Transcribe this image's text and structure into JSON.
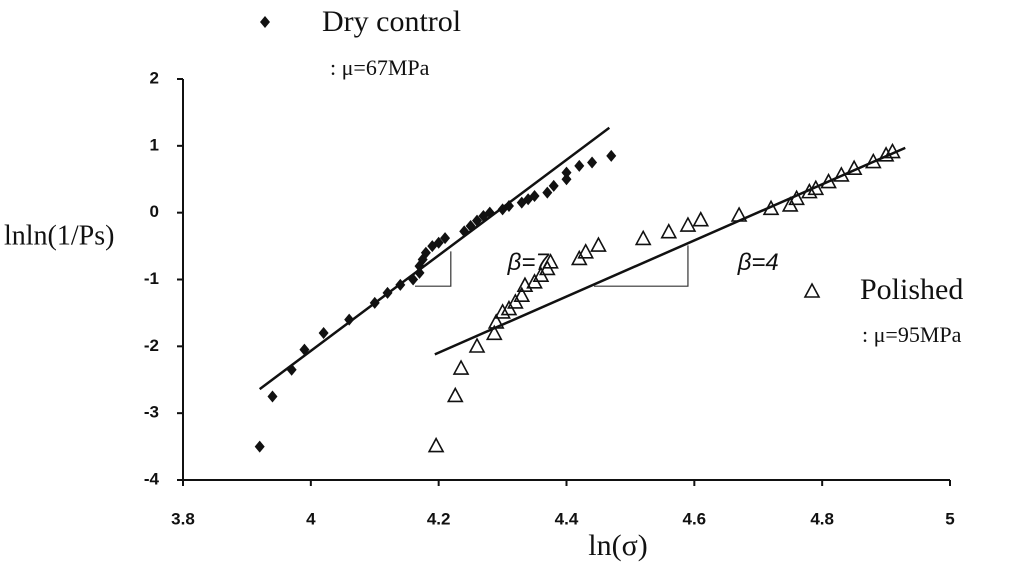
{
  "chart_data": {
    "type": "scatter",
    "xlabel": "ln(σ)",
    "ylabel": "lnln(1/Ps)",
    "xlim": [
      3.8,
      5
    ],
    "ylim": [
      -4,
      2
    ],
    "xticks": [
      3.8,
      4,
      4.2,
      4.4,
      4.6,
      4.8,
      5
    ],
    "yticks": [
      -4,
      -3,
      -2,
      -1,
      0,
      1,
      2
    ],
    "series": [
      {
        "name": "Dry control",
        "note": ": μ=67MPa",
        "marker": "diamond",
        "color": "#111111",
        "x": [
          3.92,
          3.94,
          3.97,
          3.99,
          4.02,
          4.06,
          4.1,
          4.12,
          4.14,
          4.16,
          4.17,
          4.17,
          4.175,
          4.18,
          4.19,
          4.2,
          4.21,
          4.24,
          4.25,
          4.26,
          4.27,
          4.28,
          4.3,
          4.31,
          4.33,
          4.34,
          4.35,
          4.37,
          4.38,
          4.4,
          4.4,
          4.42,
          4.44,
          4.47
        ],
        "values": [
          -3.5,
          -2.75,
          -2.35,
          -2.05,
          -1.8,
          -1.6,
          -1.35,
          -1.2,
          -1.08,
          -1.0,
          -0.9,
          -0.8,
          -0.7,
          -0.6,
          -0.5,
          -0.45,
          -0.38,
          -0.28,
          -0.2,
          -0.12,
          -0.05,
          0,
          0.05,
          0.1,
          0.15,
          0.2,
          0.25,
          0.3,
          0.4,
          0.5,
          0.6,
          0.7,
          0.75,
          0.85
        ],
        "fit": [
          [
            3.92,
            -2.64
          ],
          [
            4.467,
            1.27
          ]
        ]
      },
      {
        "name": "Polished",
        "note": ": μ=95MPa",
        "marker": "triangle",
        "color": "#111111",
        "x": [
          4.196,
          4.226,
          4.235,
          4.26,
          4.287,
          4.29,
          4.3,
          4.31,
          4.32,
          4.33,
          4.335,
          4.35,
          4.36,
          4.37,
          4.375,
          4.42,
          4.43,
          4.45,
          4.52,
          4.56,
          4.59,
          4.61,
          4.67,
          4.72,
          4.75,
          4.76,
          4.78,
          4.79,
          4.81,
          4.83,
          4.85,
          4.88,
          4.9,
          4.91
        ],
        "values": [
          -3.5,
          -2.75,
          -2.34,
          -2.01,
          -1.82,
          -1.65,
          -1.5,
          -1.45,
          -1.35,
          -1.25,
          -1.1,
          -1.05,
          -0.95,
          -0.85,
          -0.75,
          -0.7,
          -0.6,
          -0.5,
          -0.4,
          -0.3,
          -0.2,
          -0.12,
          -0.05,
          0.05,
          0.1,
          0.2,
          0.3,
          0.35,
          0.45,
          0.55,
          0.65,
          0.75,
          0.85,
          0.9
        ],
        "fit": [
          [
            4.194,
            -2.12
          ],
          [
            4.93,
            0.97
          ]
        ]
      }
    ],
    "annotations": [
      {
        "text": "β=7",
        "x": 4.34,
        "y": -0.76,
        "triangle": [
          [
            4.163,
            -1.1
          ],
          [
            4.219,
            -1.1
          ],
          [
            4.219,
            -0.58
          ]
        ]
      },
      {
        "text": "β=4",
        "x": 4.7,
        "y": -0.76,
        "triangle": [
          [
            4.443,
            -1.1
          ],
          [
            4.59,
            -1.1
          ],
          [
            4.59,
            -0.49
          ]
        ]
      }
    ]
  }
}
